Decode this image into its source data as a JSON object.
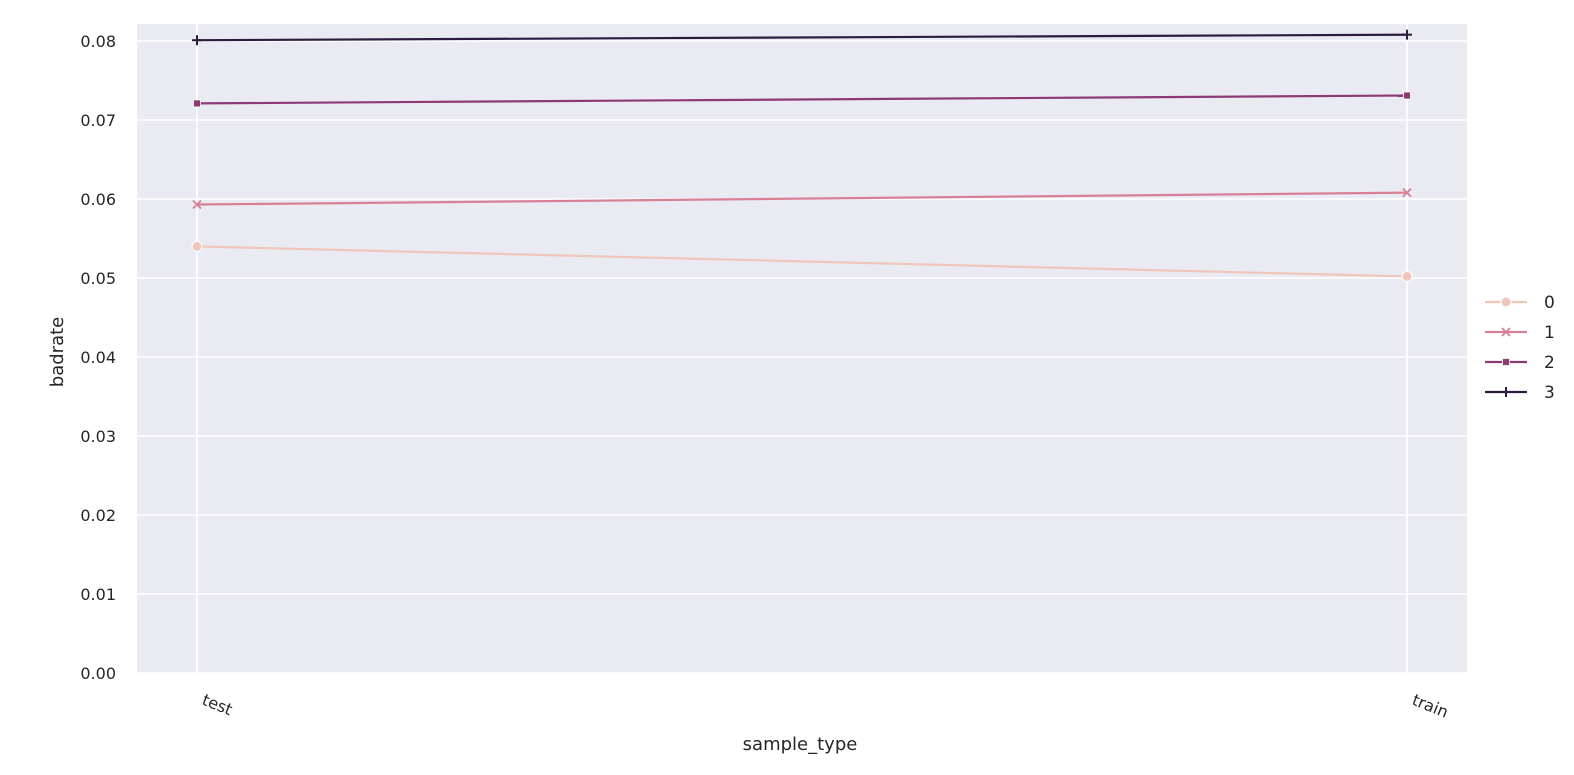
{
  "chart_data": {
    "type": "line",
    "xlabel": "sample_type",
    "ylabel": "badrate",
    "categories": [
      "test",
      "train"
    ],
    "ylim": [
      0,
      0.082
    ],
    "yticks": [
      "0.00",
      "0.01",
      "0.02",
      "0.03",
      "0.04",
      "0.05",
      "0.06",
      "0.07",
      "0.08"
    ],
    "grid": true,
    "legend_position": "right",
    "series": [
      {
        "name": "0",
        "values": [
          0.054,
          0.0502
        ],
        "color": "#f0c6bb",
        "marker": "circle"
      },
      {
        "name": "1",
        "values": [
          0.0593,
          0.0608
        ],
        "color": "#d78095",
        "marker": "x"
      },
      {
        "name": "2",
        "values": [
          0.0721,
          0.0731
        ],
        "color": "#8c3a74",
        "marker": "square"
      },
      {
        "name": "3",
        "values": [
          0.0801,
          0.0808
        ],
        "color": "#2c1d3f",
        "marker": "plus"
      }
    ]
  }
}
